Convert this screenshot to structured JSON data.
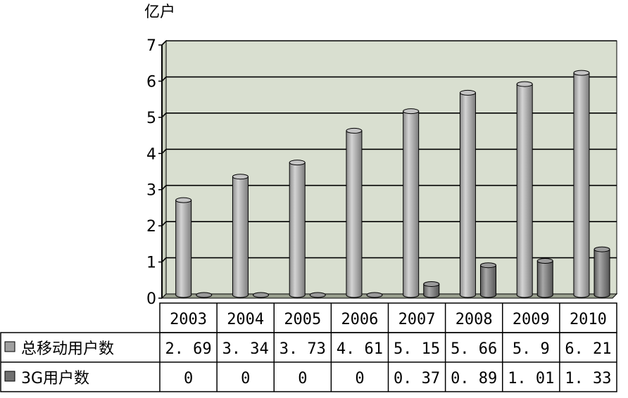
{
  "chart_data": {
    "type": "bar",
    "unit": "亿户",
    "categories": [
      "2003",
      "2004",
      "2005",
      "2006",
      "2007",
      "2008",
      "2009",
      "2010"
    ],
    "series": [
      {
        "name": "总移动用户数",
        "values": [
          2.69,
          3.34,
          3.73,
          4.61,
          5.15,
          5.66,
          5.9,
          6.21
        ],
        "labels": [
          "2. 69",
          "3. 34",
          "3. 73",
          "4. 61",
          "5. 15",
          "5. 66",
          "5. 9",
          "6. 21"
        ],
        "color": "#a0a0a0"
      },
      {
        "name": "3G用户数",
        "values": [
          0,
          0,
          0,
          0,
          0.37,
          0.89,
          1.01,
          1.33
        ],
        "labels": [
          "0",
          "0",
          "0",
          "0",
          "0. 37",
          "0. 89",
          "1. 01",
          "1. 33"
        ],
        "color": "#707070"
      }
    ],
    "ylim": [
      0,
      7
    ],
    "yticks": [
      "0",
      "1",
      "2",
      "3",
      "4",
      "5",
      "6",
      "7"
    ],
    "grid": true,
    "plot_background": "#d9dfd0",
    "legend": "data-table-below"
  }
}
